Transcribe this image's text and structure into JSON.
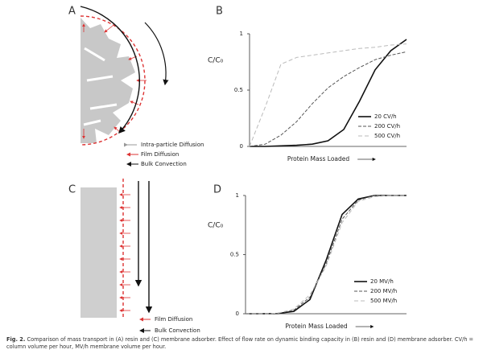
{
  "panels": {
    "A": {
      "label": "A",
      "legend": [
        "Intra-particle Diffusion",
        "Film Diffusion",
        "Bulk Convection"
      ]
    },
    "C": {
      "label": "C",
      "legend": [
        "Film Diffusion",
        "Bulk Convection"
      ]
    }
  },
  "chart_data": [
    {
      "type": "line",
      "label": "B",
      "ylabel": "C/C₀",
      "xlabel": "Protein Mass Loaded",
      "x": [
        0,
        0.1,
        0.2,
        0.3,
        0.4,
        0.5,
        0.6,
        0.7,
        0.8,
        0.9,
        1.0
      ],
      "xlim": [
        0,
        1
      ],
      "ylim": [
        0,
        1
      ],
      "yticks": [
        0,
        0.5,
        1
      ],
      "legend": "lower right",
      "series": [
        {
          "name": "20 CV/h",
          "color": "#111111",
          "values": [
            0,
            0,
            0.005,
            0.01,
            0.02,
            0.05,
            0.15,
            0.4,
            0.68,
            0.85,
            0.95
          ]
        },
        {
          "name": "200 CV/h",
          "color": "#555555",
          "values": [
            0,
            0.02,
            0.1,
            0.22,
            0.38,
            0.52,
            0.62,
            0.7,
            0.77,
            0.81,
            0.84
          ]
        },
        {
          "name": "500 CV/h",
          "color": "#bbbbbb",
          "values": [
            0,
            0.35,
            0.73,
            0.79,
            0.81,
            0.83,
            0.85,
            0.87,
            0.88,
            0.9,
            0.91
          ]
        }
      ]
    },
    {
      "type": "line",
      "label": "D",
      "ylabel": "C/C₀",
      "xlabel": "Protein Mass Loaded",
      "x": [
        0,
        0.1,
        0.2,
        0.3,
        0.4,
        0.5,
        0.6,
        0.7,
        0.8,
        0.9,
        1.0
      ],
      "xlim": [
        0,
        1
      ],
      "ylim": [
        0,
        1
      ],
      "yticks": [
        0,
        0.5,
        1
      ],
      "legend": "lower right",
      "series": [
        {
          "name": "20 MV/h",
          "color": "#111111",
          "values": [
            0,
            0,
            0.002,
            0.02,
            0.12,
            0.45,
            0.84,
            0.97,
            1,
            1,
            1
          ]
        },
        {
          "name": "200 MV/h",
          "color": "#555555",
          "values": [
            0,
            0,
            0.003,
            0.03,
            0.14,
            0.42,
            0.8,
            0.96,
            1,
            1,
            1
          ]
        },
        {
          "name": "500 MV/h",
          "color": "#bbbbbb",
          "values": [
            0,
            0,
            0.004,
            0.04,
            0.16,
            0.4,
            0.77,
            0.95,
            0.99,
            1,
            1
          ]
        }
      ]
    }
  ],
  "caption": {
    "label": "Fig. 2.",
    "text": "Comparison of mass transport in (A) resin and (C) membrane adsorber. Effect of flow rate on dynamic binding capacity in (B) resin and (D) membrane adsorber. CV/h = column volume per hour, MV/h membrane volume per hour."
  }
}
